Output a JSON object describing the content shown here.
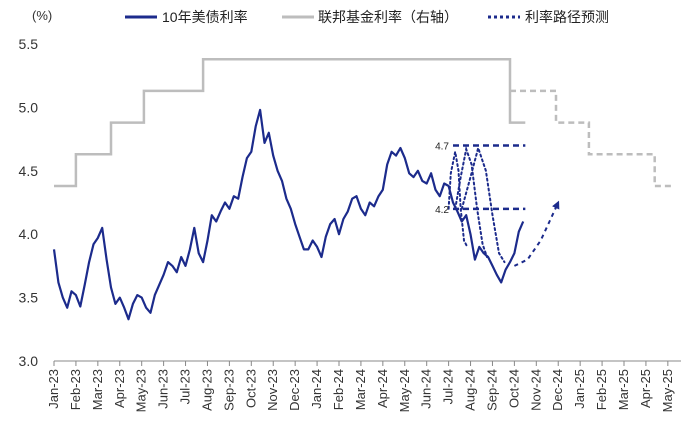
{
  "chart_data": {
    "type": "line",
    "unit_label": "(%)",
    "y_axis": {
      "min": 3.0,
      "max": 5.5,
      "ticks": [
        "3.0",
        "3.5",
        "4.0",
        "4.5",
        "5.0",
        "5.5"
      ]
    },
    "categories": [
      "Jan-23",
      "Feb-23",
      "Mar-23",
      "Apr-23",
      "May-23",
      "Jun-23",
      "Jul-23",
      "Aug-23",
      "Sep-23",
      "Oct-23",
      "Nov-23",
      "Dec-23",
      "Jan-24",
      "Feb-24",
      "Mar-24",
      "Apr-24",
      "May-24",
      "Jun-24",
      "Jul-24",
      "Aug-24",
      "Sep-24",
      "Oct-24",
      "Nov-24",
      "Dec-24",
      "Jan-25",
      "Feb-25",
      "Mar-25",
      "Apr-25",
      "May-25"
    ],
    "legend": [
      {
        "name": "10年美债利率",
        "style": "solid",
        "color": "#1c2b8c"
      },
      {
        "name": "联邦基金利率（右轴）",
        "style": "solid",
        "color": "#bdbdbd"
      },
      {
        "name": "利率路径预测",
        "style": "dotted",
        "color": "#1c2b8c"
      }
    ],
    "series": [
      {
        "name": "10年美债利率",
        "points": [
          [
            0,
            3.88
          ],
          [
            0.2,
            3.62
          ],
          [
            0.4,
            3.5
          ],
          [
            0.6,
            3.42
          ],
          [
            0.8,
            3.55
          ],
          [
            1.0,
            3.52
          ],
          [
            1.2,
            3.43
          ],
          [
            1.4,
            3.6
          ],
          [
            1.6,
            3.78
          ],
          [
            1.8,
            3.92
          ],
          [
            2.0,
            3.97
          ],
          [
            2.2,
            4.05
          ],
          [
            2.4,
            3.8
          ],
          [
            2.6,
            3.58
          ],
          [
            2.8,
            3.45
          ],
          [
            3.0,
            3.5
          ],
          [
            3.2,
            3.42
          ],
          [
            3.4,
            3.33
          ],
          [
            3.6,
            3.45
          ],
          [
            3.8,
            3.52
          ],
          [
            4.0,
            3.5
          ],
          [
            4.2,
            3.42
          ],
          [
            4.4,
            3.38
          ],
          [
            4.6,
            3.52
          ],
          [
            4.8,
            3.6
          ],
          [
            5.0,
            3.68
          ],
          [
            5.2,
            3.78
          ],
          [
            5.4,
            3.75
          ],
          [
            5.6,
            3.7
          ],
          [
            5.8,
            3.82
          ],
          [
            6.0,
            3.75
          ],
          [
            6.2,
            3.88
          ],
          [
            6.4,
            4.05
          ],
          [
            6.6,
            3.85
          ],
          [
            6.8,
            3.78
          ],
          [
            7.0,
            3.95
          ],
          [
            7.2,
            4.15
          ],
          [
            7.4,
            4.1
          ],
          [
            7.6,
            4.18
          ],
          [
            7.8,
            4.25
          ],
          [
            8.0,
            4.2
          ],
          [
            8.2,
            4.3
          ],
          [
            8.4,
            4.28
          ],
          [
            8.6,
            4.45
          ],
          [
            8.8,
            4.6
          ],
          [
            9.0,
            4.65
          ],
          [
            9.2,
            4.85
          ],
          [
            9.4,
            4.98
          ],
          [
            9.6,
            4.72
          ],
          [
            9.8,
            4.8
          ],
          [
            10.0,
            4.62
          ],
          [
            10.2,
            4.5
          ],
          [
            10.4,
            4.42
          ],
          [
            10.6,
            4.28
          ],
          [
            10.8,
            4.2
          ],
          [
            11.0,
            4.08
          ],
          [
            11.2,
            3.98
          ],
          [
            11.4,
            3.88
          ],
          [
            11.6,
            3.88
          ],
          [
            11.8,
            3.95
          ],
          [
            12.0,
            3.9
          ],
          [
            12.2,
            3.82
          ],
          [
            12.4,
            3.98
          ],
          [
            12.6,
            4.08
          ],
          [
            12.8,
            4.12
          ],
          [
            13.0,
            4.0
          ],
          [
            13.2,
            4.12
          ],
          [
            13.4,
            4.18
          ],
          [
            13.6,
            4.28
          ],
          [
            13.8,
            4.3
          ],
          [
            14.0,
            4.2
          ],
          [
            14.2,
            4.15
          ],
          [
            14.4,
            4.25
          ],
          [
            14.6,
            4.22
          ],
          [
            14.8,
            4.3
          ],
          [
            15.0,
            4.35
          ],
          [
            15.2,
            4.55
          ],
          [
            15.4,
            4.65
          ],
          [
            15.6,
            4.62
          ],
          [
            15.8,
            4.68
          ],
          [
            16.0,
            4.6
          ],
          [
            16.2,
            4.48
          ],
          [
            16.4,
            4.45
          ],
          [
            16.6,
            4.5
          ],
          [
            16.8,
            4.42
          ],
          [
            17.0,
            4.4
          ],
          [
            17.2,
            4.48
          ],
          [
            17.4,
            4.35
          ],
          [
            17.6,
            4.3
          ],
          [
            17.8,
            4.4
          ],
          [
            18.0,
            4.38
          ],
          [
            18.2,
            4.25
          ],
          [
            18.4,
            4.18
          ],
          [
            18.6,
            4.1
          ],
          [
            18.8,
            4.15
          ],
          [
            19.0,
            4.0
          ],
          [
            19.2,
            3.8
          ],
          [
            19.4,
            3.9
          ],
          [
            19.6,
            3.85
          ],
          [
            19.8,
            3.82
          ],
          [
            20.0,
            3.75
          ],
          [
            20.2,
            3.68
          ],
          [
            20.4,
            3.62
          ],
          [
            20.6,
            3.72
          ],
          [
            20.8,
            3.78
          ],
          [
            21.0,
            3.85
          ],
          [
            21.2,
            4.02
          ],
          [
            21.4,
            4.1
          ]
        ]
      },
      {
        "name": "联邦基金利率（右轴）",
        "points": [
          [
            0,
            4.38
          ],
          [
            1,
            4.38
          ],
          [
            1,
            4.63
          ],
          [
            2.6,
            4.63
          ],
          [
            2.6,
            4.88
          ],
          [
            4.1,
            4.88
          ],
          [
            4.1,
            5.13
          ],
          [
            6.8,
            5.13
          ],
          [
            6.8,
            5.38
          ],
          [
            20.8,
            5.38
          ],
          [
            20.8,
            4.88
          ],
          [
            21.5,
            4.88
          ]
        ]
      },
      {
        "name": "联邦基金利率预测",
        "points": [
          [
            20.8,
            5.13
          ],
          [
            22.9,
            5.13
          ],
          [
            22.9,
            4.88
          ],
          [
            24.4,
            4.88
          ],
          [
            24.4,
            4.63
          ],
          [
            27.4,
            4.63
          ],
          [
            27.4,
            4.38
          ],
          [
            28.2,
            4.38
          ]
        ]
      },
      {
        "name": "利率路径预测",
        "points": [
          [
            21.0,
            3.75
          ],
          [
            21.6,
            3.8
          ],
          [
            22.2,
            3.95
          ],
          [
            22.6,
            4.1
          ],
          [
            23.0,
            4.25
          ]
        ]
      }
    ],
    "annotations": [
      {
        "label": "4.7",
        "value": 4.7,
        "x_start": 18.2,
        "x_end": 21.5
      },
      {
        "label": "4.2",
        "value": 4.2,
        "x_start": 18.2,
        "x_end": 21.5
      }
    ],
    "path_curves": [
      [
        [
          18.0,
          4.2
        ],
        [
          18.1,
          4.48
        ],
        [
          18.3,
          4.65
        ],
        [
          18.45,
          4.5
        ],
        [
          18.55,
          4.2
        ],
        [
          18.7,
          3.95
        ],
        [
          18.85,
          3.9
        ]
      ],
      [
        [
          18.3,
          4.2
        ],
        [
          18.55,
          4.45
        ],
        [
          18.8,
          4.67
        ],
        [
          19.05,
          4.55
        ],
        [
          19.3,
          4.2
        ],
        [
          19.55,
          3.92
        ],
        [
          19.75,
          3.82
        ]
      ],
      [
        [
          18.6,
          4.2
        ],
        [
          19.0,
          4.45
        ],
        [
          19.35,
          4.68
        ],
        [
          19.7,
          4.5
        ],
        [
          20.0,
          4.15
        ],
        [
          20.3,
          3.85
        ],
        [
          20.55,
          3.78
        ]
      ]
    ]
  }
}
